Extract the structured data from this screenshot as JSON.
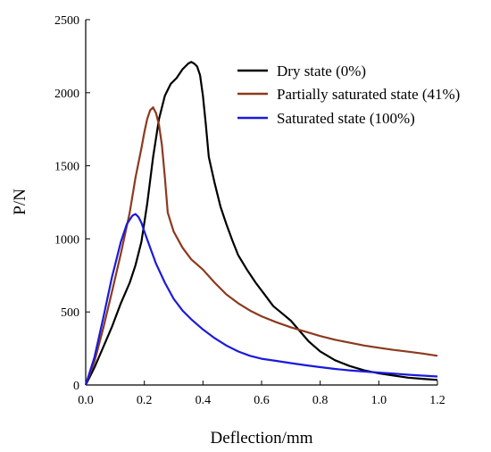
{
  "chart_data": {
    "type": "line",
    "title": "",
    "xlabel": "Deflection/mm",
    "ylabel": "P/N",
    "xlim": [
      0,
      1.2
    ],
    "ylim": [
      0,
      2500
    ],
    "xticks": [
      0,
      0.2,
      0.4,
      0.6,
      0.8,
      1.0,
      1.2
    ],
    "xtick_labels": [
      "0.0",
      "0.2",
      "0.4",
      "0.6",
      "0.8",
      "1.0",
      "1.2"
    ],
    "yticks": [
      0,
      500,
      1000,
      1500,
      2000,
      2500
    ],
    "ytick_labels": [
      "0",
      "500",
      "1000",
      "1500",
      "2000",
      "2500"
    ],
    "grid": false,
    "legend_position": "top-right",
    "series": [
      {
        "name": "Dry state  (0%)",
        "color": "#000000",
        "x": [
          0,
          0.03,
          0.06,
          0.09,
          0.12,
          0.15,
          0.17,
          0.19,
          0.21,
          0.23,
          0.25,
          0.27,
          0.29,
          0.31,
          0.33,
          0.35,
          0.36,
          0.37,
          0.38,
          0.39,
          0.4,
          0.41,
          0.42,
          0.44,
          0.46,
          0.48,
          0.5,
          0.52,
          0.55,
          0.58,
          0.61,
          0.64,
          0.67,
          0.7,
          0.73,
          0.76,
          0.8,
          0.85,
          0.9,
          0.95,
          1.0,
          1.05,
          1.1,
          1.15,
          1.2
        ],
        "y": [
          0,
          120,
          260,
          400,
          560,
          700,
          820,
          980,
          1240,
          1560,
          1820,
          1980,
          2060,
          2100,
          2160,
          2200,
          2210,
          2200,
          2180,
          2120,
          1980,
          1780,
          1560,
          1380,
          1220,
          1100,
          990,
          890,
          790,
          700,
          620,
          540,
          490,
          440,
          370,
          300,
          230,
          170,
          130,
          100,
          80,
          65,
          50,
          42,
          35
        ]
      },
      {
        "name": "Partially saturated state  (41%)",
        "color": "#8b3a1e",
        "x": [
          0,
          0.03,
          0.06,
          0.09,
          0.12,
          0.15,
          0.17,
          0.19,
          0.2,
          0.21,
          0.22,
          0.23,
          0.24,
          0.25,
          0.26,
          0.27,
          0.28,
          0.3,
          0.33,
          0.36,
          0.4,
          0.44,
          0.48,
          0.52,
          0.56,
          0.6,
          0.65,
          0.7,
          0.75,
          0.8,
          0.85,
          0.9,
          0.95,
          1.0,
          1.05,
          1.1,
          1.15,
          1.2
        ],
        "y": [
          0,
          160,
          390,
          640,
          900,
          1180,
          1420,
          1620,
          1730,
          1820,
          1880,
          1900,
          1860,
          1780,
          1640,
          1420,
          1180,
          1050,
          940,
          860,
          790,
          700,
          620,
          560,
          510,
          470,
          430,
          395,
          365,
          335,
          310,
          290,
          270,
          255,
          240,
          228,
          215,
          200
        ]
      },
      {
        "name": "Saturated state   (100%)",
        "color": "#1a1adc",
        "x": [
          0,
          0.03,
          0.06,
          0.09,
          0.12,
          0.14,
          0.16,
          0.17,
          0.18,
          0.19,
          0.2,
          0.22,
          0.24,
          0.27,
          0.3,
          0.33,
          0.36,
          0.4,
          0.44,
          0.48,
          0.52,
          0.56,
          0.6,
          0.65,
          0.7,
          0.75,
          0.8,
          0.85,
          0.9,
          0.95,
          1.0,
          1.05,
          1.1,
          1.15,
          1.2
        ],
        "y": [
          0,
          190,
          460,
          740,
          980,
          1100,
          1160,
          1170,
          1150,
          1110,
          1050,
          940,
          830,
          700,
          590,
          510,
          450,
          380,
          320,
          270,
          230,
          200,
          180,
          165,
          150,
          135,
          122,
          110,
          100,
          92,
          85,
          78,
          70,
          64,
          58
        ]
      }
    ]
  }
}
